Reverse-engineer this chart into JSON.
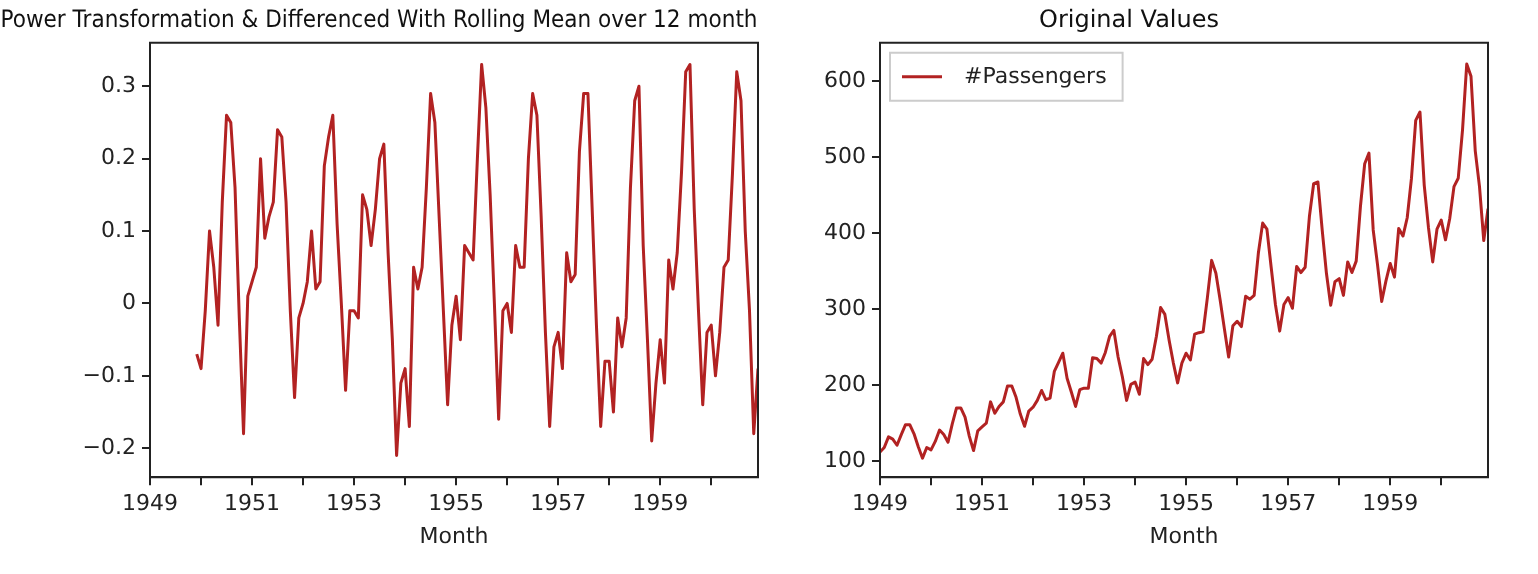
{
  "chart_data": [
    {
      "type": "line",
      "title": "Power Transformation & Differenced With Rolling Mean over 12 month",
      "xlabel": "Month",
      "x": [
        "1949-12",
        "1950-01",
        "1950-02",
        "1950-03",
        "1950-04",
        "1950-05",
        "1950-06",
        "1950-07",
        "1950-08",
        "1950-09",
        "1950-10",
        "1950-11",
        "1950-12",
        "1951-01",
        "1951-02",
        "1951-03",
        "1951-04",
        "1951-05",
        "1951-06",
        "1951-07",
        "1951-08",
        "1951-09",
        "1951-10",
        "1951-11",
        "1951-12",
        "1952-01",
        "1952-02",
        "1952-03",
        "1952-04",
        "1952-05",
        "1952-06",
        "1952-07",
        "1952-08",
        "1952-09",
        "1952-10",
        "1952-11",
        "1952-12",
        "1953-01",
        "1953-02",
        "1953-03",
        "1953-04",
        "1953-05",
        "1953-06",
        "1953-07",
        "1953-08",
        "1953-09",
        "1953-10",
        "1953-11",
        "1953-12",
        "1954-01",
        "1954-02",
        "1954-03",
        "1954-04",
        "1954-05",
        "1954-06",
        "1954-07",
        "1954-08",
        "1954-09",
        "1954-10",
        "1954-11",
        "1954-12",
        "1955-01",
        "1955-02",
        "1955-03",
        "1955-04",
        "1955-05",
        "1955-06",
        "1955-07",
        "1955-08",
        "1955-09",
        "1955-10",
        "1955-11",
        "1955-12",
        "1956-01",
        "1956-02",
        "1956-03",
        "1956-04",
        "1956-05",
        "1956-06",
        "1956-07",
        "1956-08",
        "1956-09",
        "1956-10",
        "1956-11",
        "1956-12",
        "1957-01",
        "1957-02",
        "1957-03",
        "1957-04",
        "1957-05",
        "1957-06",
        "1957-07",
        "1957-08",
        "1957-09",
        "1957-10",
        "1957-11",
        "1957-12",
        "1958-01",
        "1958-02",
        "1958-03",
        "1958-04",
        "1958-05",
        "1958-06",
        "1958-07",
        "1958-08",
        "1958-09",
        "1958-10",
        "1958-11",
        "1958-12",
        "1959-01",
        "1959-02",
        "1959-03",
        "1959-04",
        "1959-05",
        "1959-06",
        "1959-07",
        "1959-08",
        "1959-09",
        "1959-10",
        "1959-11",
        "1959-12",
        "1960-01",
        "1960-02",
        "1960-03",
        "1960-04",
        "1960-05",
        "1960-06",
        "1960-07",
        "1960-08",
        "1960-09",
        "1960-10",
        "1960-11",
        "1960-12"
      ],
      "series": [
        {
          "color": "#b22222",
          "values": [
            -0.07,
            -0.09,
            -0.01,
            0.1,
            0.05,
            -0.03,
            0.14,
            0.26,
            0.25,
            0.16,
            -0.02,
            -0.18,
            0.01,
            0.03,
            0.05,
            0.2,
            0.09,
            0.12,
            0.14,
            0.24,
            0.23,
            0.14,
            -0.01,
            -0.13,
            -0.02,
            0.0,
            0.03,
            0.1,
            0.02,
            0.03,
            0.19,
            0.23,
            0.26,
            0.11,
            0.0,
            -0.12,
            -0.01,
            -0.01,
            -0.02,
            0.15,
            0.13,
            0.08,
            0.13,
            0.2,
            0.22,
            0.07,
            -0.05,
            -0.21,
            -0.11,
            -0.09,
            -0.17,
            0.05,
            0.02,
            0.05,
            0.16,
            0.29,
            0.25,
            0.12,
            -0.01,
            -0.14,
            -0.03,
            0.01,
            -0.05,
            0.08,
            0.07,
            0.06,
            0.2,
            0.33,
            0.27,
            0.15,
            0.0,
            -0.16,
            -0.01,
            0.0,
            -0.04,
            0.08,
            0.05,
            0.05,
            0.2,
            0.29,
            0.26,
            0.12,
            -0.04,
            -0.17,
            -0.06,
            -0.04,
            -0.09,
            0.07,
            0.03,
            0.04,
            0.21,
            0.29,
            0.29,
            0.13,
            -0.03,
            -0.17,
            -0.08,
            -0.08,
            -0.15,
            -0.02,
            -0.06,
            -0.02,
            0.16,
            0.28,
            0.3,
            0.08,
            -0.05,
            -0.19,
            -0.11,
            -0.05,
            -0.11,
            0.06,
            0.02,
            0.07,
            0.18,
            0.32,
            0.33,
            0.13,
            -0.01,
            -0.14,
            -0.04,
            -0.03,
            -0.1,
            -0.04,
            0.05,
            0.06,
            0.18,
            0.32,
            0.28,
            0.1,
            -0.01,
            -0.18,
            -0.09
          ]
        }
      ],
      "xlim": [
        "1949-01",
        "1960-12"
      ],
      "xticks": [
        "1949",
        {
          "value": "1950",
          "label": null
        },
        "1951",
        {
          "value": "1952",
          "label": null
        },
        "1953",
        {
          "value": "1954",
          "label": null
        },
        "1955",
        {
          "value": "1956",
          "label": null
        },
        "1957",
        {
          "value": "1958",
          "label": null
        },
        "1959",
        {
          "value": "1960",
          "label": null
        }
      ],
      "ylim": [
        -0.24,
        0.36
      ],
      "yticks": [
        {
          "value": -0.2,
          "label": "−0.2"
        },
        {
          "value": -0.1,
          "label": "−0.1"
        },
        0.0,
        0.1,
        0.2,
        0.3
      ],
      "grid": false,
      "marker": "none",
      "line_style": "solid"
    },
    {
      "type": "line",
      "title": "Original Values",
      "xlabel": "Month",
      "x": [
        "1949-01",
        "1949-02",
        "1949-03",
        "1949-04",
        "1949-05",
        "1949-06",
        "1949-07",
        "1949-08",
        "1949-09",
        "1949-10",
        "1949-11",
        "1949-12",
        "1950-01",
        "1950-02",
        "1950-03",
        "1950-04",
        "1950-05",
        "1950-06",
        "1950-07",
        "1950-08",
        "1950-09",
        "1950-10",
        "1950-11",
        "1950-12",
        "1951-01",
        "1951-02",
        "1951-03",
        "1951-04",
        "1951-05",
        "1951-06",
        "1951-07",
        "1951-08",
        "1951-09",
        "1951-10",
        "1951-11",
        "1951-12",
        "1952-01",
        "1952-02",
        "1952-03",
        "1952-04",
        "1952-05",
        "1952-06",
        "1952-07",
        "1952-08",
        "1952-09",
        "1952-10",
        "1952-11",
        "1952-12",
        "1953-01",
        "1953-02",
        "1953-03",
        "1953-04",
        "1953-05",
        "1953-06",
        "1953-07",
        "1953-08",
        "1953-09",
        "1953-10",
        "1953-11",
        "1953-12",
        "1954-01",
        "1954-02",
        "1954-03",
        "1954-04",
        "1954-05",
        "1954-06",
        "1954-07",
        "1954-08",
        "1954-09",
        "1954-10",
        "1954-11",
        "1954-12",
        "1955-01",
        "1955-02",
        "1955-03",
        "1955-04",
        "1955-05",
        "1955-06",
        "1955-07",
        "1955-08",
        "1955-09",
        "1955-10",
        "1955-11",
        "1955-12",
        "1956-01",
        "1956-02",
        "1956-03",
        "1956-04",
        "1956-05",
        "1956-06",
        "1956-07",
        "1956-08",
        "1956-09",
        "1956-10",
        "1956-11",
        "1956-12",
        "1957-01",
        "1957-02",
        "1957-03",
        "1957-04",
        "1957-05",
        "1957-06",
        "1957-07",
        "1957-08",
        "1957-09",
        "1957-10",
        "1957-11",
        "1957-12",
        "1958-01",
        "1958-02",
        "1958-03",
        "1958-04",
        "1958-05",
        "1958-06",
        "1958-07",
        "1958-08",
        "1958-09",
        "1958-10",
        "1958-11",
        "1958-12",
        "1959-01",
        "1959-02",
        "1959-03",
        "1959-04",
        "1959-05",
        "1959-06",
        "1959-07",
        "1959-08",
        "1959-09",
        "1959-10",
        "1959-11",
        "1959-12",
        "1960-01",
        "1960-02",
        "1960-03",
        "1960-04",
        "1960-05",
        "1960-06",
        "1960-07",
        "1960-08",
        "1960-09",
        "1960-10",
        "1960-11",
        "1960-12"
      ],
      "series": [
        {
          "name": "#Passengers",
          "color": "#b22222",
          "values": [
            112,
            118,
            132,
            129,
            121,
            135,
            148,
            148,
            136,
            119,
            104,
            118,
            115,
            126,
            141,
            135,
            125,
            149,
            170,
            170,
            158,
            133,
            114,
            140,
            145,
            150,
            178,
            163,
            172,
            178,
            199,
            199,
            184,
            162,
            146,
            166,
            171,
            180,
            193,
            181,
            183,
            218,
            230,
            242,
            209,
            191,
            172,
            194,
            196,
            196,
            236,
            235,
            229,
            243,
            264,
            272,
            237,
            211,
            180,
            201,
            204,
            188,
            235,
            227,
            234,
            264,
            302,
            293,
            259,
            229,
            203,
            229,
            242,
            233,
            267,
            269,
            270,
            315,
            364,
            347,
            312,
            274,
            237,
            278,
            284,
            277,
            317,
            313,
            318,
            374,
            413,
            405,
            355,
            306,
            271,
            306,
            315,
            301,
            356,
            348,
            355,
            422,
            465,
            467,
            404,
            347,
            305,
            336,
            340,
            318,
            362,
            348,
            363,
            435,
            491,
            505,
            404,
            359,
            310,
            337,
            360,
            342,
            406,
            396,
            420,
            472,
            548,
            559,
            463,
            407,
            362,
            405,
            417,
            391,
            419,
            461,
            472,
            535,
            622,
            606,
            508,
            461,
            390,
            432
          ]
        }
      ],
      "xlim": [
        "1949-01",
        "1960-12"
      ],
      "xticks": [
        "1949",
        {
          "value": "1950",
          "label": null
        },
        "1951",
        {
          "value": "1952",
          "label": null
        },
        "1953",
        {
          "value": "1954",
          "label": null
        },
        "1955",
        {
          "value": "1956",
          "label": null
        },
        "1957",
        {
          "value": "1958",
          "label": null
        },
        "1959",
        {
          "value": "1960",
          "label": null
        }
      ],
      "ylim": [
        79,
        650
      ],
      "yticks": [
        100,
        200,
        300,
        400,
        500,
        600
      ],
      "grid": false,
      "legend": "top left",
      "marker": "none",
      "line_style": "solid"
    }
  ]
}
